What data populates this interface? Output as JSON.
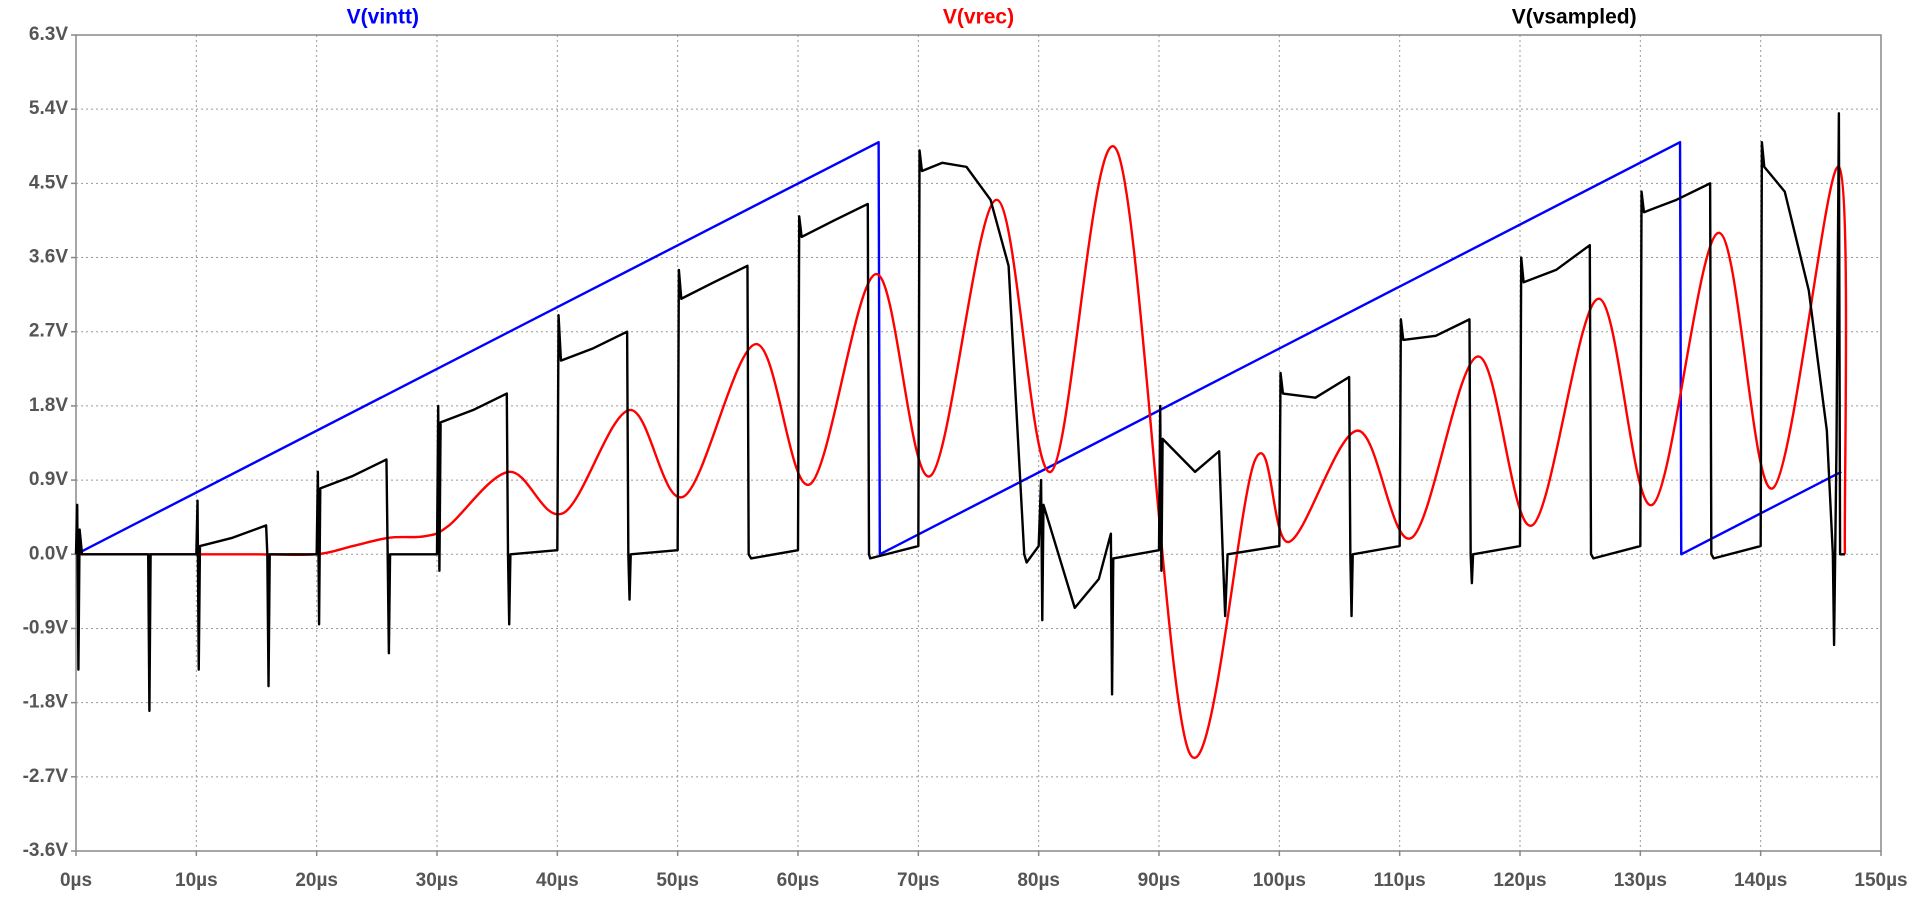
{
  "chart_data": {
    "type": "line",
    "xlim": [
      0,
      150
    ],
    "xticks": [
      {
        "value": 0,
        "label": "0µs"
      },
      {
        "value": 10,
        "label": "10µs"
      },
      {
        "value": 20,
        "label": "20µs"
      },
      {
        "value": 30,
        "label": "30µs"
      },
      {
        "value": 40,
        "label": "40µs"
      },
      {
        "value": 50,
        "label": "50µs"
      },
      {
        "value": 60,
        "label": "60µs"
      },
      {
        "value": 70,
        "label": "70µs"
      },
      {
        "value": 80,
        "label": "80µs"
      },
      {
        "value": 90,
        "label": "90µs"
      },
      {
        "value": 100,
        "label": "100µs"
      },
      {
        "value": 110,
        "label": "110µs"
      },
      {
        "value": 120,
        "label": "120µs"
      },
      {
        "value": 130,
        "label": "130µs"
      },
      {
        "value": 140,
        "label": "140µs"
      },
      {
        "value": 150,
        "label": "150µs"
      }
    ],
    "ylim": [
      -3.6,
      6.3
    ],
    "yticks": [
      {
        "value": -3.6,
        "label": "-3.6V"
      },
      {
        "value": -2.7,
        "label": "-2.7V"
      },
      {
        "value": -1.8,
        "label": "-1.8V"
      },
      {
        "value": -0.9,
        "label": "-0.9V"
      },
      {
        "value": 0,
        "label": "0.0V"
      },
      {
        "value": 0.9,
        "label": "0.9V"
      },
      {
        "value": 1.8,
        "label": "1.8V"
      },
      {
        "value": 2.7,
        "label": "2.7V"
      },
      {
        "value": 3.6,
        "label": "3.6V"
      },
      {
        "value": 4.5,
        "label": "4.5V"
      },
      {
        "value": 5.4,
        "label": "5.4V"
      },
      {
        "value": 6.3,
        "label": "6.3V"
      }
    ],
    "grid": true,
    "series": [
      {
        "name": "V(vintt)",
        "color": "#0000ff",
        "smooth": false,
        "x": [
          0,
          66.7,
          66.8,
          133.3,
          133.4,
          146.7
        ],
        "values": [
          0,
          5.0,
          0,
          5.0,
          0,
          1.0
        ]
      },
      {
        "name": "V(vrec)",
        "color": "#ff0000",
        "smooth": true,
        "x": [
          0,
          10,
          15,
          20,
          23,
          26,
          29,
          31,
          36,
          40.5,
          46,
          50.5,
          56.5,
          61,
          66.5,
          71,
          76.5,
          81,
          86.5,
          92.5,
          98,
          100.8,
          106.5,
          111,
          116.5,
          121,
          126.5,
          131,
          136.5,
          141,
          146.5,
          147
        ],
        "values": [
          0,
          0,
          0,
          0,
          0.1,
          0.2,
          0.22,
          0.35,
          1.0,
          0.5,
          1.75,
          0.7,
          2.55,
          0.85,
          3.4,
          0.95,
          4.3,
          1.0,
          4.9,
          -2.4,
          1.15,
          0.15,
          1.5,
          0.2,
          2.4,
          0.35,
          3.1,
          0.6,
          3.9,
          0.8,
          4.7,
          0.0
        ]
      },
      {
        "name": "V(vsampled)",
        "color": "#000000",
        "smooth": false,
        "x": [
          0,
          0.1,
          0.2,
          0.3,
          0.5,
          6,
          6.1,
          6.2,
          10,
          10.1,
          10.2,
          10.3,
          13,
          15.8,
          15.9,
          16,
          16.1,
          20,
          20.1,
          20.2,
          20.3,
          23,
          25.8,
          25.9,
          26,
          26.1,
          30,
          30.1,
          30.2,
          30.3,
          33,
          35.8,
          35.9,
          36,
          36.1,
          40,
          40.1,
          40.3,
          43,
          45.8,
          45.9,
          46,
          46.1,
          50,
          50.1,
          50.3,
          53,
          55.8,
          55.9,
          56.1,
          60,
          60.1,
          60.3,
          63,
          65.8,
          65.9,
          66,
          70,
          70.1,
          70.3,
          72,
          74,
          76,
          77.5,
          78.8,
          79,
          80,
          80.2,
          80.3,
          80.4,
          83,
          85,
          86,
          86.1,
          86.2,
          90,
          90.1,
          90.2,
          90.3,
          93,
          95,
          95.3,
          95.5,
          95.7,
          100,
          100.1,
          100.3,
          103,
          105.8,
          105.9,
          106,
          106.1,
          110,
          110.1,
          110.3,
          113,
          115.8,
          115.9,
          116,
          116.1,
          120,
          120.1,
          120.3,
          123,
          125.8,
          125.9,
          126.1,
          130,
          130.1,
          130.3,
          133,
          135.8,
          135.9,
          136.1,
          140,
          140.1,
          140.3,
          142,
          144,
          145.5,
          146,
          146.1,
          146.3,
          146.5,
          146.6,
          147
        ],
        "values": [
          0,
          0.6,
          -1.4,
          0.3,
          0,
          0,
          -1.9,
          0,
          0,
          0.65,
          -1.4,
          0.1,
          0.2,
          0.35,
          0,
          -1.6,
          0,
          0,
          1.0,
          -0.85,
          0.8,
          0.95,
          1.15,
          0,
          -1.2,
          0,
          0,
          1.8,
          -0.2,
          1.6,
          1.75,
          1.95,
          0,
          -0.85,
          0,
          0.05,
          2.9,
          2.35,
          2.5,
          2.7,
          0,
          -0.55,
          0,
          0.05,
          3.45,
          3.1,
          3.3,
          3.5,
          0,
          -0.05,
          0.05,
          4.1,
          3.85,
          4.05,
          4.25,
          0,
          -0.05,
          0.1,
          4.9,
          4.65,
          4.75,
          4.7,
          4.3,
          3.5,
          0,
          -0.1,
          0.1,
          0.9,
          -0.8,
          0.6,
          -0.65,
          -0.3,
          0.25,
          -1.7,
          -0.05,
          0.05,
          1.8,
          -0.2,
          1.4,
          1.0,
          1.25,
          0,
          -0.75,
          0,
          0.1,
          2.2,
          1.95,
          1.9,
          2.15,
          0,
          -0.75,
          0,
          0.1,
          2.85,
          2.6,
          2.65,
          2.85,
          0,
          -0.35,
          0,
          0.1,
          3.6,
          3.3,
          3.45,
          3.75,
          0,
          -0.05,
          0.1,
          4.4,
          4.15,
          4.3,
          4.5,
          0,
          -0.05,
          0.1,
          5.0,
          4.7,
          4.4,
          3.2,
          1.5,
          0,
          -1.1,
          1.3,
          5.35,
          0,
          0
        ]
      }
    ]
  }
}
